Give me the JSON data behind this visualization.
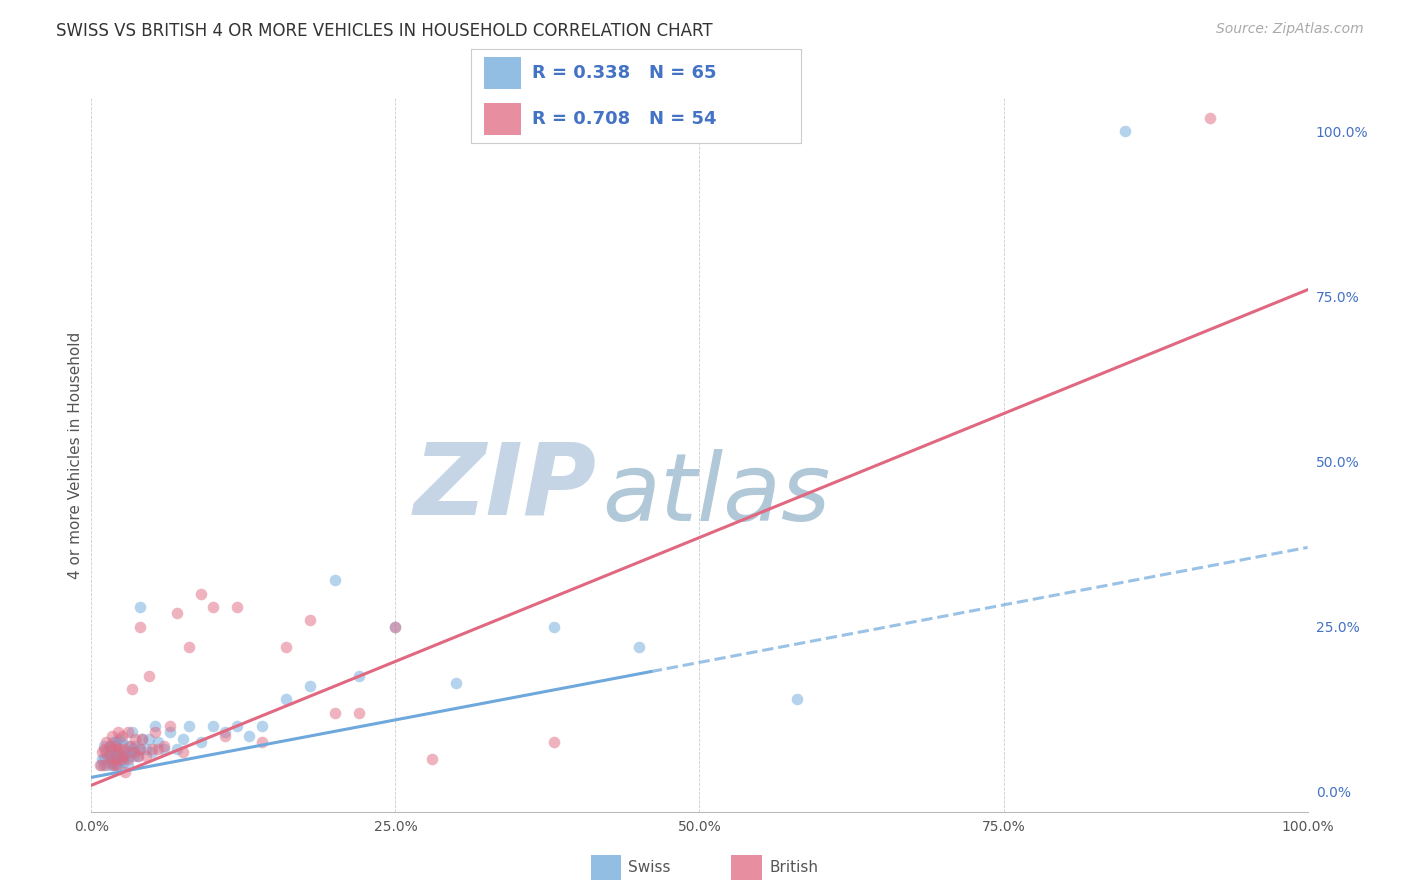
{
  "title": "SWISS VS BRITISH 4 OR MORE VEHICLES IN HOUSEHOLD CORRELATION CHART",
  "source": "Source: ZipAtlas.com",
  "ylabel": "4 or more Vehicles in Household",
  "xlim": [
    0,
    1.0
  ],
  "ylim": [
    -0.03,
    1.05
  ],
  "xtick_positions": [
    0.0,
    0.25,
    0.5,
    0.75,
    1.0
  ],
  "xticklabels": [
    "0.0%",
    "25.0%",
    "50.0%",
    "75.0%",
    "100.0%"
  ],
  "ytick_positions": [
    0.0,
    0.25,
    0.5,
    0.75,
    1.0
  ],
  "yticklabels": [
    "0.0%",
    "25.0%",
    "50.0%",
    "75.0%",
    "100.0%"
  ],
  "swiss_color": "#6fa8dc",
  "british_color": "#e06880",
  "swiss_R": 0.338,
  "swiss_N": 65,
  "british_R": 0.708,
  "british_N": 54,
  "swiss_line_x0": 0.0,
  "swiss_line_y0": 0.022,
  "swiss_line_x1": 1.0,
  "swiss_line_y1": 0.37,
  "swiss_solid_cutoff": 0.46,
  "british_line_x0": 0.0,
  "british_line_y0": 0.01,
  "british_line_x1": 1.0,
  "british_line_y1": 0.76,
  "watermark_zip": "ZIP",
  "watermark_atlas": "atlas",
  "watermark_color_zip": "#c5d5e5",
  "watermark_color_atlas": "#b0c8d8",
  "background_color": "#ffffff",
  "grid_color": "#cccccc",
  "title_fontsize": 12,
  "tick_fontsize": 10,
  "legend_fontsize": 13,
  "source_fontsize": 10,
  "ylabel_fontsize": 11,
  "marker_size": 70,
  "marker_alpha": 0.5,
  "line_width": 2.2,
  "legend_text_color": "#4472c4",
  "right_tick_color": "#4472c4",
  "swiss_scatter_x": [
    0.008,
    0.009,
    0.01,
    0.01,
    0.012,
    0.013,
    0.015,
    0.015,
    0.016,
    0.016,
    0.017,
    0.018,
    0.018,
    0.019,
    0.02,
    0.02,
    0.02,
    0.021,
    0.022,
    0.022,
    0.023,
    0.024,
    0.025,
    0.025,
    0.026,
    0.027,
    0.028,
    0.03,
    0.03,
    0.031,
    0.032,
    0.033,
    0.034,
    0.035,
    0.036,
    0.038,
    0.04,
    0.04,
    0.042,
    0.045,
    0.047,
    0.05,
    0.052,
    0.055,
    0.06,
    0.065,
    0.07,
    0.075,
    0.08,
    0.09,
    0.1,
    0.11,
    0.12,
    0.13,
    0.14,
    0.16,
    0.18,
    0.2,
    0.22,
    0.25,
    0.3,
    0.38,
    0.45,
    0.58,
    0.85
  ],
  "swiss_scatter_y": [
    0.04,
    0.05,
    0.05,
    0.07,
    0.06,
    0.04,
    0.055,
    0.07,
    0.045,
    0.06,
    0.04,
    0.055,
    0.075,
    0.05,
    0.04,
    0.055,
    0.075,
    0.06,
    0.04,
    0.06,
    0.08,
    0.05,
    0.055,
    0.075,
    0.045,
    0.06,
    0.055,
    0.04,
    0.07,
    0.055,
    0.06,
    0.09,
    0.065,
    0.055,
    0.07,
    0.055,
    0.065,
    0.28,
    0.08,
    0.065,
    0.08,
    0.06,
    0.1,
    0.075,
    0.065,
    0.09,
    0.065,
    0.08,
    0.1,
    0.075,
    0.1,
    0.09,
    0.1,
    0.085,
    0.1,
    0.14,
    0.16,
    0.32,
    0.175,
    0.25,
    0.165,
    0.25,
    0.22,
    0.14,
    1.0
  ],
  "british_scatter_x": [
    0.007,
    0.009,
    0.01,
    0.01,
    0.012,
    0.014,
    0.015,
    0.016,
    0.017,
    0.018,
    0.019,
    0.02,
    0.02,
    0.021,
    0.022,
    0.023,
    0.025,
    0.025,
    0.026,
    0.027,
    0.028,
    0.03,
    0.03,
    0.032,
    0.033,
    0.035,
    0.036,
    0.038,
    0.04,
    0.04,
    0.042,
    0.045,
    0.047,
    0.05,
    0.052,
    0.055,
    0.06,
    0.065,
    0.07,
    0.075,
    0.08,
    0.09,
    0.1,
    0.11,
    0.12,
    0.14,
    0.16,
    0.18,
    0.2,
    0.22,
    0.25,
    0.28,
    0.38,
    0.92
  ],
  "british_scatter_y": [
    0.04,
    0.06,
    0.04,
    0.065,
    0.075,
    0.055,
    0.07,
    0.05,
    0.085,
    0.04,
    0.065,
    0.04,
    0.07,
    0.05,
    0.09,
    0.065,
    0.05,
    0.085,
    0.055,
    0.065,
    0.03,
    0.05,
    0.09,
    0.07,
    0.155,
    0.06,
    0.08,
    0.055,
    0.25,
    0.065,
    0.08,
    0.055,
    0.175,
    0.065,
    0.09,
    0.065,
    0.07,
    0.1,
    0.27,
    0.06,
    0.22,
    0.3,
    0.28,
    0.085,
    0.28,
    0.075,
    0.22,
    0.26,
    0.12,
    0.12,
    0.25,
    0.05,
    0.075,
    1.02
  ]
}
